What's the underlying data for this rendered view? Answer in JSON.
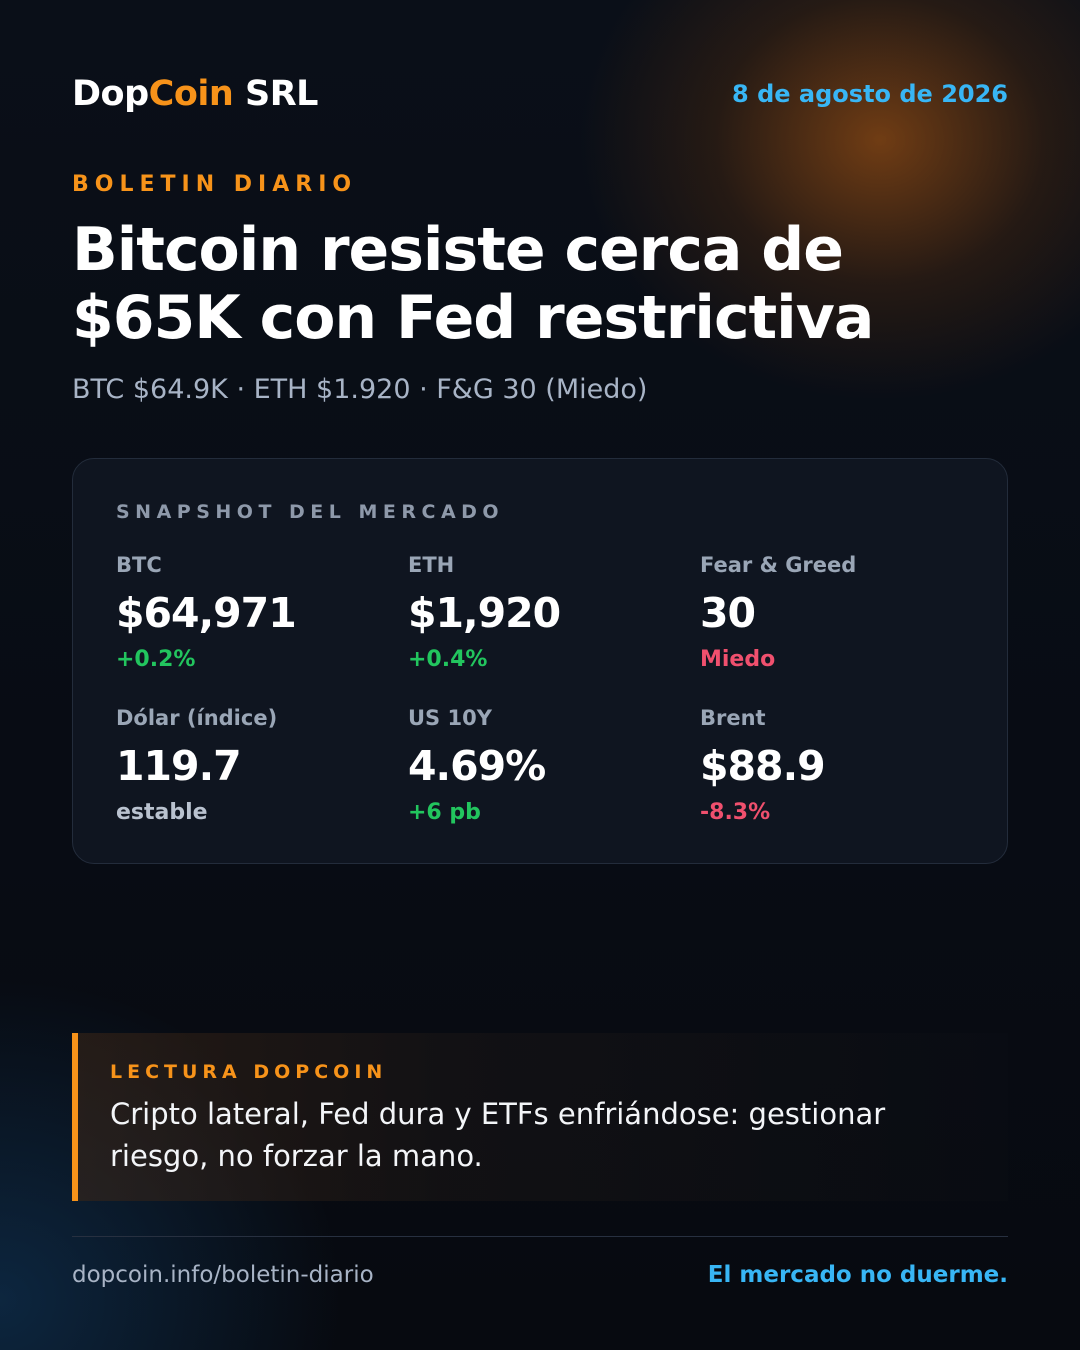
{
  "brand": {
    "name_part1": "Dop",
    "name_part2": "Coin",
    "name_part3": " SRL"
  },
  "date": "8 de agosto de 2026",
  "kicker": "BOLETIN DIARIO",
  "headline": "Bitcoin resiste cerca de $65K con Fed restrictiva",
  "subline": "BTC $64.9K · ETH $1.920 · F&G 30 (Miedo)",
  "snapshot": {
    "title": "SNAPSHOT DEL MERCADO",
    "metrics": [
      {
        "label": "BTC",
        "value": "$64,971",
        "change": "+0.2%",
        "trend": "up"
      },
      {
        "label": "ETH",
        "value": "$1,920",
        "change": "+0.4%",
        "trend": "up"
      },
      {
        "label": "Fear & Greed",
        "value": "30",
        "change": "Miedo",
        "trend": "down"
      },
      {
        "label": "Dólar (índice)",
        "value": "119.7",
        "change": "estable",
        "trend": "neutral"
      },
      {
        "label": "US 10Y",
        "value": "4.69%",
        "change": "+6 pb",
        "trend": "up"
      },
      {
        "label": "Brent",
        "value": "$88.9",
        "change": "-8.3%",
        "trend": "down"
      }
    ]
  },
  "note": {
    "title": "LECTURA DOPCOIN",
    "body": "Cripto lateral, Fed dura y ETFs enfriándose: gestionar riesgo, no forzar la mano."
  },
  "footer": {
    "url": "dopcoin.info/boletin-diario",
    "tagline": "El mercado no duerme."
  },
  "colors": {
    "accent_orange": "#f7931a",
    "accent_blue": "#38b6f5",
    "positive": "#22c55e",
    "negative": "#f0506e"
  }
}
